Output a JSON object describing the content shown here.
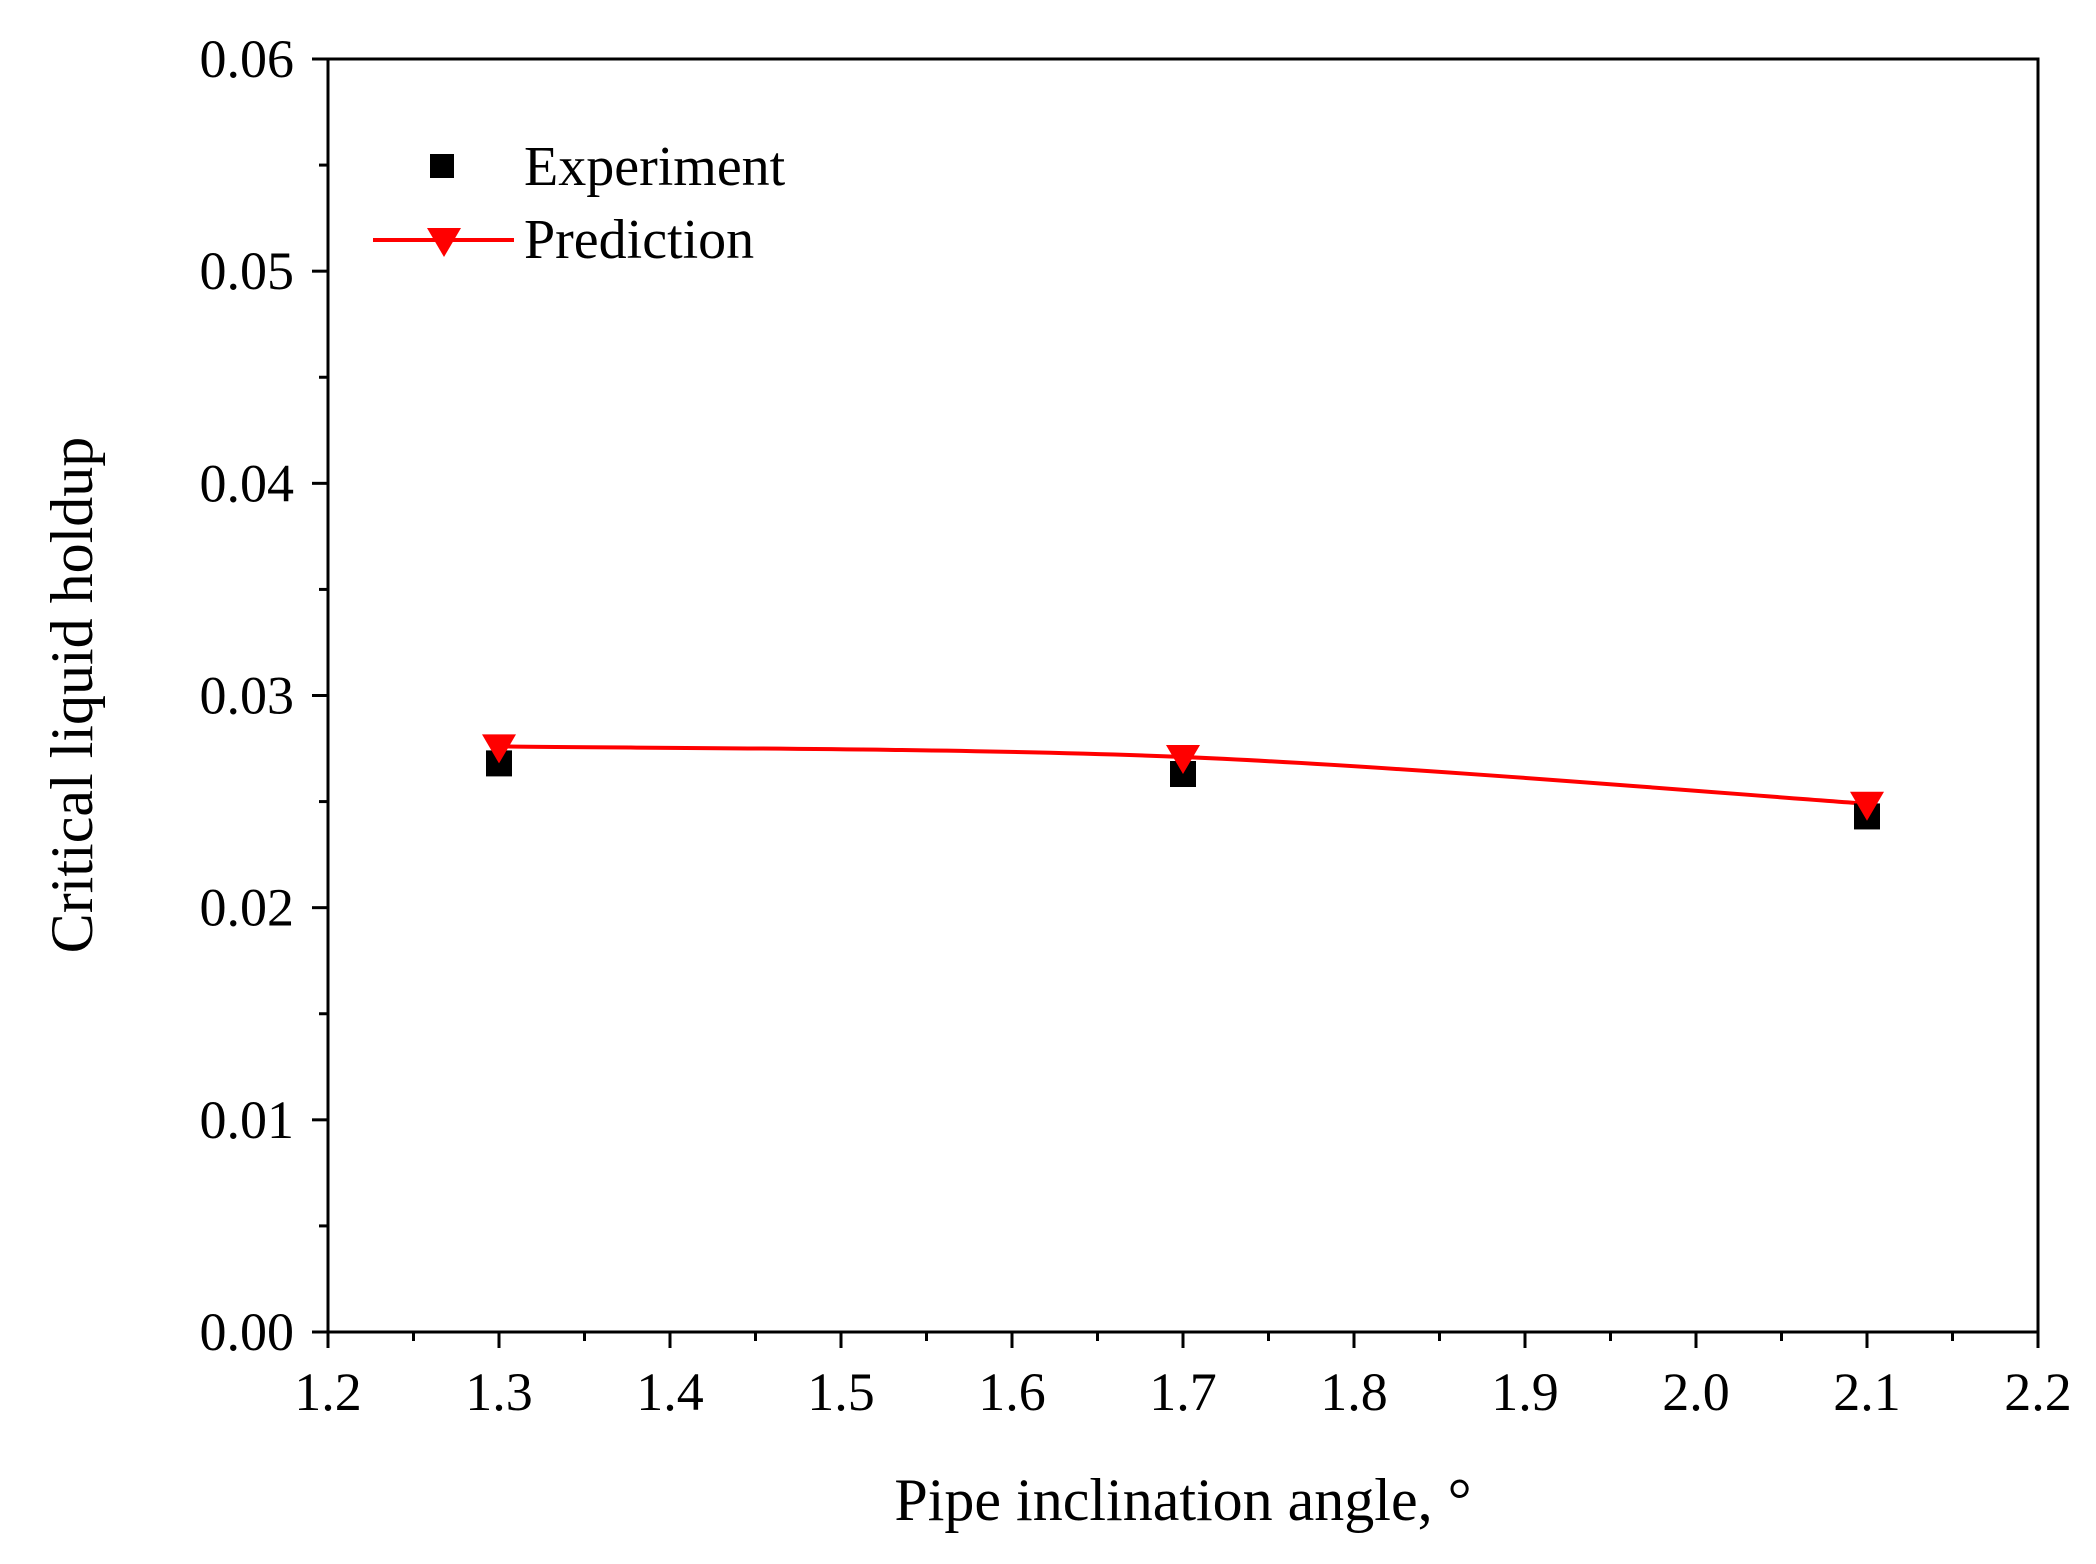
{
  "chart_data": {
    "type": "scatter",
    "title": "",
    "xlabel": "Pipe inclination angle, °",
    "ylabel": "Critical liquid holdup",
    "xlim": [
      1.2,
      2.2
    ],
    "ylim": [
      0.0,
      0.06
    ],
    "x_ticks": [
      1.2,
      1.3,
      1.4,
      1.5,
      1.6,
      1.7,
      1.8,
      1.9,
      2.0,
      2.1,
      2.2
    ],
    "x_tick_labels": [
      "1.2",
      "1.3",
      "1.4",
      "1.5",
      "1.6",
      "1.7",
      "1.8",
      "1.9",
      "2.0",
      "2.1",
      "2.2"
    ],
    "y_ticks": [
      0.0,
      0.01,
      0.02,
      0.03,
      0.04,
      0.05,
      0.06
    ],
    "y_tick_labels": [
      "0.00",
      "0.01",
      "0.02",
      "0.03",
      "0.04",
      "0.05",
      "0.06"
    ],
    "grid": false,
    "legend_position": "top-left",
    "series": [
      {
        "name": "Experiment",
        "kind": "scatter",
        "marker": "square",
        "color": "#000000",
        "x": [
          1.3,
          1.7,
          2.1
        ],
        "y": [
          0.0268,
          0.0263,
          0.0243
        ]
      },
      {
        "name": "Prediction",
        "kind": "line",
        "marker": "triangle-down",
        "color": "#ff0000",
        "x": [
          1.3,
          1.7,
          2.1
        ],
        "y": [
          0.0276,
          0.0271,
          0.0249
        ]
      }
    ]
  }
}
